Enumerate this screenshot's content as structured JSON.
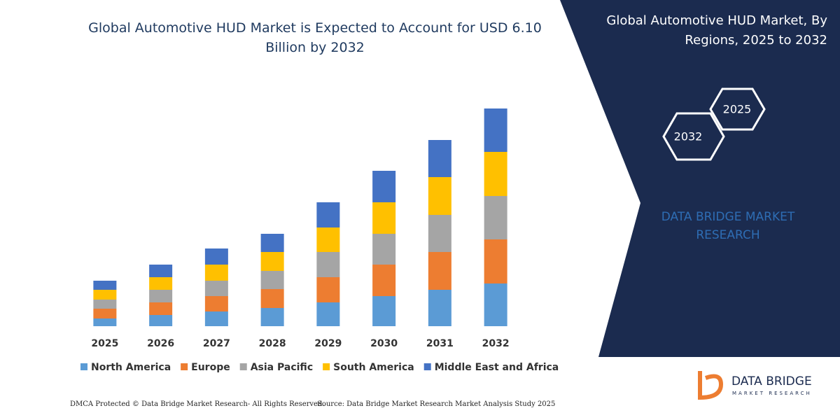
{
  "chart_data": {
    "type": "stacked_bar",
    "title": "Global Automotive HUD Market is Expected to Account for USD 6.10 Billion by 2032",
    "categories": [
      "2025",
      "2026",
      "2027",
      "2028",
      "2029",
      "2030",
      "2031",
      "2032"
    ],
    "series": [
      {
        "name": "North America",
        "color": "#5b9bd5",
        "values": [
          11,
          16,
          21,
          26,
          34,
          43,
          52,
          61
        ]
      },
      {
        "name": "Europe",
        "color": "#ed7d31",
        "values": [
          14,
          18,
          22,
          27,
          36,
          45,
          54,
          63
        ]
      },
      {
        "name": "Asia Pacific",
        "color": "#a5a5a5",
        "values": [
          13,
          18,
          22,
          26,
          36,
          44,
          53,
          62
        ]
      },
      {
        "name": "South America",
        "color": "#ffc000",
        "values": [
          14,
          18,
          23,
          27,
          35,
          45,
          54,
          63
        ]
      },
      {
        "name": "Middle East and Africa",
        "color": "#4472c4",
        "values": [
          13,
          18,
          23,
          26,
          36,
          45,
          53,
          62
        ]
      }
    ],
    "ylim": [
      0,
      320
    ]
  },
  "side_panel": {
    "title": "Global Automotive HUD Market, By Regions, 2025 to 2032",
    "hexagons": [
      "2025",
      "2032"
    ],
    "brand": "DATA BRIDGE MARKET RESEARCH"
  },
  "logo": {
    "name": "DATA BRIDGE",
    "tagline": "MARKET RESEARCH"
  },
  "footer": {
    "copyright": "DMCA Protected © Data Bridge Market Research- All Rights Reserved.",
    "source": "Source: Data Bridge Market Research Market Analysis Study 2025"
  }
}
